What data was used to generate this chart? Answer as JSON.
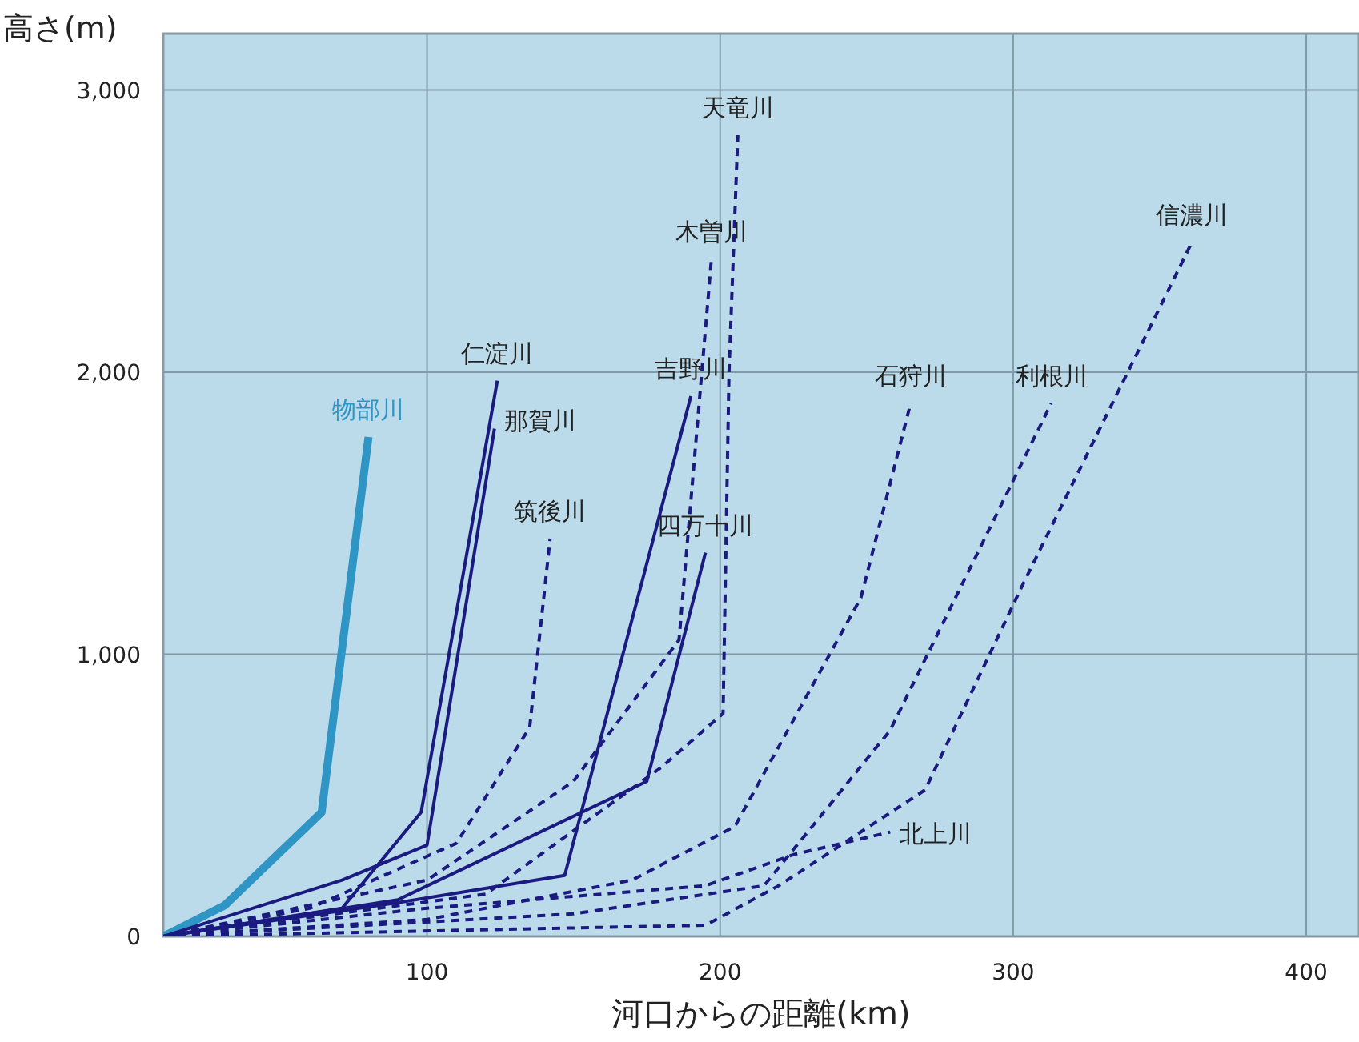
{
  "chart_data": {
    "type": "line",
    "xlabel": "河口からの距離(km)",
    "ylabel": "高さ(m)",
    "xlim": [
      10,
      418
    ],
    "ylim": [
      0,
      3200
    ],
    "xticks": [
      100,
      200,
      300,
      400
    ],
    "yticks": [
      0,
      {
        "value": 1000,
        "label": "1,000"
      },
      {
        "value": 2000,
        "label": "2,000"
      },
      {
        "value": 3000,
        "label": "3,000"
      }
    ],
    "grid": true,
    "series": [
      {
        "name": "物部川",
        "color": "#2e95c4",
        "line_style": "solid",
        "x": [
          10,
          31,
          64,
          80
        ],
        "values": [
          0,
          110,
          440,
          1770
        ]
      },
      {
        "name": "仁淀川",
        "color": "#1a1a80",
        "line_style": "solid",
        "x": [
          10,
          71,
          98,
          124
        ],
        "values": [
          0,
          100,
          440,
          1970
        ]
      },
      {
        "name": "那賀川",
        "color": "#1a1a80",
        "line_style": "solid",
        "x": [
          10,
          71,
          100,
          123
        ],
        "values": [
          0,
          200,
          324,
          1800
        ]
      },
      {
        "name": "吉野川",
        "color": "#1a1a80",
        "line_style": "solid",
        "x": [
          10,
          90,
          147,
          190
        ],
        "values": [
          0,
          120,
          216,
          1915
        ]
      },
      {
        "name": "四万十川",
        "color": "#1a1a80",
        "line_style": "solid",
        "x": [
          10,
          90,
          175,
          195
        ],
        "values": [
          0,
          130,
          550,
          1360
        ]
      },
      {
        "name": "筑後川",
        "color": "#1a1a80",
        "line_style": "dashed",
        "x": [
          10,
          60,
          110,
          135,
          142
        ],
        "values": [
          0,
          100,
          330,
          740,
          1410
        ]
      },
      {
        "name": "木曽川",
        "color": "#1a1a80",
        "line_style": "dashed",
        "x": [
          10,
          100,
          150,
          186,
          197
        ],
        "values": [
          0,
          200,
          550,
          1050,
          2400
        ]
      },
      {
        "name": "天竜川",
        "color": "#1a1a80",
        "line_style": "dashed",
        "x": [
          10,
          120,
          180,
          201,
          203,
          206
        ],
        "values": [
          0,
          150,
          600,
          790,
          2000,
          2840
        ]
      },
      {
        "name": "石狩川",
        "color": "#1a1a80",
        "line_style": "dashed",
        "x": [
          10,
          100,
          170,
          205,
          248,
          265
        ],
        "values": [
          0,
          60,
          200,
          390,
          1200,
          1890
        ]
      },
      {
        "name": "利根川",
        "color": "#1a1a80",
        "line_style": "dashed",
        "x": [
          10,
          150,
          215,
          258,
          313
        ],
        "values": [
          0,
          80,
          180,
          730,
          1890
        ]
      },
      {
        "name": "信濃川",
        "color": "#1a1a80",
        "line_style": "dashed",
        "x": [
          10,
          195,
          220,
          270,
          303,
          361
        ],
        "values": [
          0,
          40,
          180,
          520,
          1240,
          2460
        ]
      },
      {
        "name": "北上川",
        "color": "#1a1a80",
        "line_style": "dashed",
        "x": [
          10,
          100,
          195,
          225,
          258
        ],
        "values": [
          0,
          100,
          180,
          290,
          370
        ]
      }
    ]
  }
}
